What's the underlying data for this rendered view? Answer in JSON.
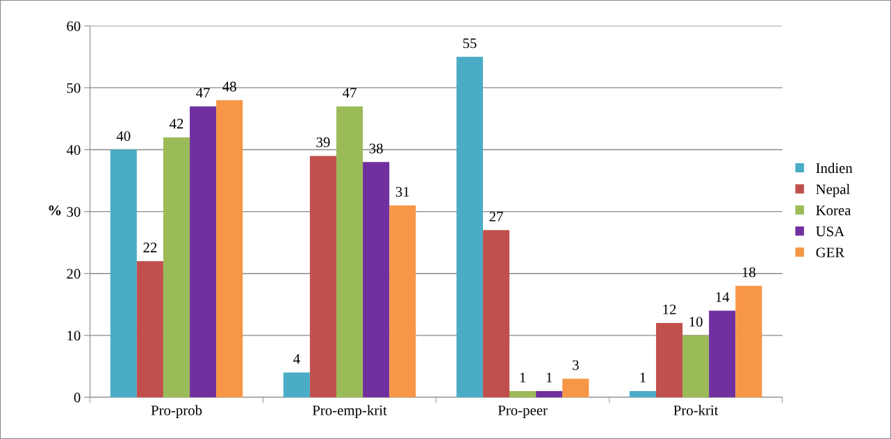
{
  "chart_data": {
    "type": "bar",
    "ylabel": "%",
    "categories": [
      "Pro-prob",
      "Pro-emp-krit",
      "Pro-peer",
      "Pro-krit"
    ],
    "series": [
      {
        "name": "Indien",
        "color": "#4bacc6",
        "values": [
          40,
          4,
          55,
          1
        ]
      },
      {
        "name": "Nepal",
        "color": "#c0504d",
        "values": [
          22,
          39,
          27,
          12
        ]
      },
      {
        "name": "Korea",
        "color": "#9bbb59",
        "values": [
          42,
          47,
          1,
          10
        ]
      },
      {
        "name": "USA",
        "color": "#7030a0",
        "values": [
          47,
          38,
          1,
          14
        ]
      },
      {
        "name": "GER",
        "color": "#f79646",
        "values": [
          48,
          31,
          3,
          18
        ]
      }
    ],
    "ylim": [
      0,
      60
    ],
    "yticks": [
      0,
      10,
      20,
      30,
      40,
      50,
      60
    ],
    "grid": "y",
    "legend": "right",
    "data_labels": true
  }
}
